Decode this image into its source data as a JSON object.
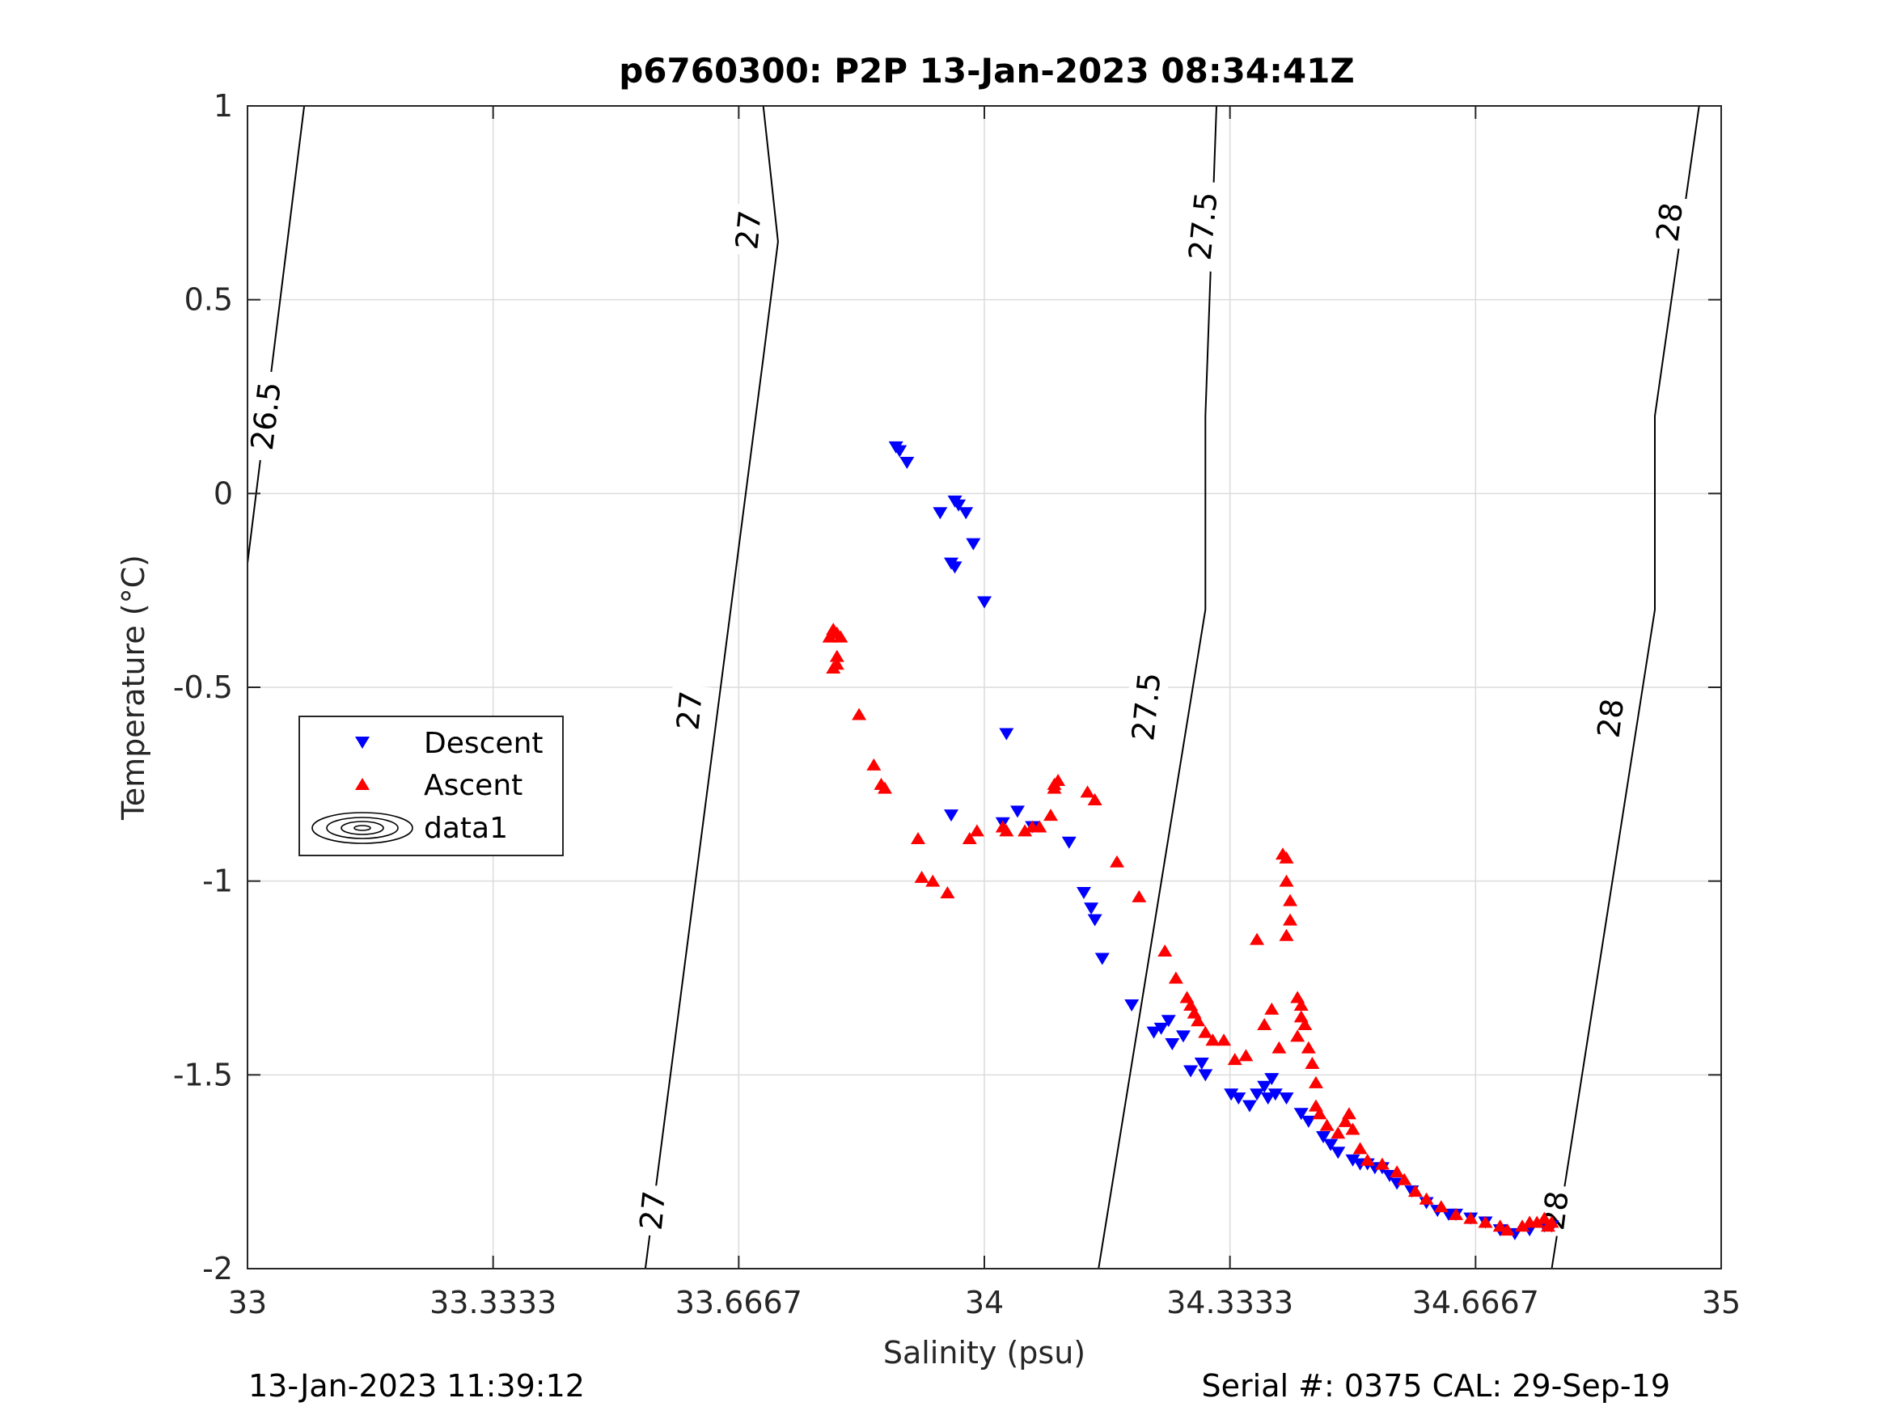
{
  "chart_data": {
    "type": "scatter",
    "title": "p6760300: P2P 13-Jan-2023 08:34:41Z",
    "xlabel": "Salinity (psu)",
    "ylabel": "Temperature (°C)",
    "xlim": [
      33,
      35
    ],
    "ylim": [
      -2,
      1
    ],
    "xticks": [
      "33",
      "33.3333",
      "33.6667",
      "34",
      "34.3333",
      "34.6667",
      "35"
    ],
    "yticks": [
      "1",
      "0.5",
      "0",
      "-0.5",
      "-1",
      "-1.5",
      "-2"
    ],
    "grid": true,
    "legend": {
      "placement": "left",
      "entries": [
        "Descent",
        "Ascent",
        "data1"
      ]
    },
    "footer_left": "13-Jan-2023 11:39:12",
    "footer_right": "Serial #: 0375  CAL: 29-Sep-19",
    "contours": [
      {
        "label": "26.5",
        "points": [
          [
            33.0,
            -0.18
          ],
          [
            33.077,
            1.0
          ]
        ],
        "labels_at": [
          [
            33.025,
            0.2
          ]
        ]
      },
      {
        "label": "27",
        "points": [
          [
            33.54,
            -2.0
          ],
          [
            33.7,
            0.35
          ],
          [
            33.72,
            0.65
          ],
          [
            33.7,
            1.0
          ]
        ],
        "labels_at": [
          [
            33.55,
            -1.85
          ],
          [
            33.6,
            -0.56
          ],
          [
            33.68,
            0.68
          ]
        ]
      },
      {
        "label": "27.5",
        "points": [
          [
            34.155,
            -2.0
          ],
          [
            34.3,
            -0.3
          ],
          [
            34.3,
            0.2
          ],
          [
            34.315,
            1.0
          ]
        ],
        "labels_at": [
          [
            34.22,
            -0.55
          ],
          [
            34.297,
            0.69
          ]
        ]
      },
      {
        "label": "28",
        "points": [
          [
            34.77,
            -2.0
          ],
          [
            34.91,
            -0.3
          ],
          [
            34.91,
            0.2
          ],
          [
            34.97,
            1.0
          ]
        ],
        "labels_at": [
          [
            34.775,
            -1.85
          ],
          [
            34.85,
            -0.58
          ],
          [
            34.93,
            0.7
          ]
        ]
      }
    ],
    "series": [
      {
        "name": "Descent",
        "color": "#0000ff",
        "marker": "triangle-down",
        "points": [
          [
            33.88,
            0.12
          ],
          [
            33.885,
            0.11
          ],
          [
            33.895,
            0.08
          ],
          [
            33.96,
            -0.02
          ],
          [
            33.965,
            -0.03
          ],
          [
            33.975,
            -0.05
          ],
          [
            33.94,
            -0.05
          ],
          [
            33.985,
            -0.13
          ],
          [
            33.955,
            -0.18
          ],
          [
            33.96,
            -0.19
          ],
          [
            34.0,
            -0.28
          ],
          [
            34.03,
            -0.62
          ],
          [
            33.955,
            -0.83
          ],
          [
            34.045,
            -0.82
          ],
          [
            34.025,
            -0.85
          ],
          [
            34.065,
            -0.86
          ],
          [
            34.115,
            -0.9
          ],
          [
            34.135,
            -1.03
          ],
          [
            34.145,
            -1.07
          ],
          [
            34.15,
            -1.1
          ],
          [
            34.16,
            -1.2
          ],
          [
            34.2,
            -1.32
          ],
          [
            34.23,
            -1.39
          ],
          [
            34.24,
            -1.38
          ],
          [
            34.25,
            -1.36
          ],
          [
            34.255,
            -1.42
          ],
          [
            34.27,
            -1.4
          ],
          [
            34.28,
            -1.49
          ],
          [
            34.295,
            -1.47
          ],
          [
            34.3,
            -1.5
          ],
          [
            34.335,
            -1.55
          ],
          [
            34.345,
            -1.56
          ],
          [
            34.36,
            -1.58
          ],
          [
            34.37,
            -1.55
          ],
          [
            34.38,
            -1.53
          ],
          [
            34.385,
            -1.56
          ],
          [
            34.39,
            -1.51
          ],
          [
            34.395,
            -1.55
          ],
          [
            34.41,
            -1.56
          ],
          [
            34.43,
            -1.6
          ],
          [
            34.44,
            -1.62
          ],
          [
            34.46,
            -1.66
          ],
          [
            34.47,
            -1.68
          ],
          [
            34.48,
            -1.7
          ],
          [
            34.5,
            -1.72
          ],
          [
            34.51,
            -1.73
          ],
          [
            34.52,
            -1.73
          ],
          [
            34.53,
            -1.74
          ],
          [
            34.54,
            -1.74
          ],
          [
            34.55,
            -1.76
          ],
          [
            34.56,
            -1.78
          ],
          [
            34.58,
            -1.8
          ],
          [
            34.6,
            -1.83
          ],
          [
            34.615,
            -1.85
          ],
          [
            34.63,
            -1.86
          ],
          [
            34.64,
            -1.86
          ],
          [
            34.66,
            -1.87
          ],
          [
            34.68,
            -1.88
          ],
          [
            34.7,
            -1.9
          ],
          [
            34.72,
            -1.91
          ],
          [
            34.74,
            -1.9
          ],
          [
            34.76,
            -1.89
          ],
          [
            34.77,
            -1.89
          ]
        ]
      },
      {
        "name": "Ascent",
        "color": "#ff0000",
        "marker": "triangle-up",
        "points": [
          [
            33.795,
            -0.35
          ],
          [
            33.8,
            -0.36
          ],
          [
            33.805,
            -0.37
          ],
          [
            33.79,
            -0.37
          ],
          [
            33.8,
            -0.42
          ],
          [
            33.8,
            -0.44
          ],
          [
            33.795,
            -0.45
          ],
          [
            33.83,
            -0.57
          ],
          [
            33.85,
            -0.7
          ],
          [
            33.86,
            -0.75
          ],
          [
            33.865,
            -0.76
          ],
          [
            33.91,
            -0.89
          ],
          [
            33.915,
            -0.99
          ],
          [
            33.93,
            -1.0
          ],
          [
            33.95,
            -1.03
          ],
          [
            33.98,
            -0.89
          ],
          [
            33.99,
            -0.87
          ],
          [
            34.025,
            -0.86
          ],
          [
            34.03,
            -0.87
          ],
          [
            34.055,
            -0.87
          ],
          [
            34.065,
            -0.86
          ],
          [
            34.075,
            -0.86
          ],
          [
            34.09,
            -0.83
          ],
          [
            34.095,
            -0.75
          ],
          [
            34.1,
            -0.74
          ],
          [
            34.095,
            -0.76
          ],
          [
            34.14,
            -0.77
          ],
          [
            34.15,
            -0.79
          ],
          [
            34.18,
            -0.95
          ],
          [
            34.21,
            -1.04
          ],
          [
            34.245,
            -1.18
          ],
          [
            34.26,
            -1.25
          ],
          [
            34.275,
            -1.3
          ],
          [
            34.28,
            -1.32
          ],
          [
            34.285,
            -1.34
          ],
          [
            34.29,
            -1.36
          ],
          [
            34.3,
            -1.39
          ],
          [
            34.31,
            -1.41
          ],
          [
            34.325,
            -1.41
          ],
          [
            34.34,
            -1.46
          ],
          [
            34.355,
            -1.45
          ],
          [
            34.37,
            -1.15
          ],
          [
            34.38,
            -1.37
          ],
          [
            34.39,
            -1.33
          ],
          [
            34.4,
            -1.43
          ],
          [
            34.405,
            -0.93
          ],
          [
            34.41,
            -0.94
          ],
          [
            34.41,
            -1.0
          ],
          [
            34.415,
            -1.05
          ],
          [
            34.415,
            -1.1
          ],
          [
            34.41,
            -1.14
          ],
          [
            34.425,
            -1.3
          ],
          [
            34.43,
            -1.32
          ],
          [
            34.43,
            -1.35
          ],
          [
            34.435,
            -1.37
          ],
          [
            34.425,
            -1.4
          ],
          [
            34.44,
            -1.43
          ],
          [
            34.445,
            -1.47
          ],
          [
            34.45,
            -1.52
          ],
          [
            34.45,
            -1.58
          ],
          [
            34.455,
            -1.6
          ],
          [
            34.465,
            -1.63
          ],
          [
            34.48,
            -1.65
          ],
          [
            34.49,
            -1.62
          ],
          [
            34.495,
            -1.6
          ],
          [
            34.5,
            -1.64
          ],
          [
            34.51,
            -1.69
          ],
          [
            34.52,
            -1.72
          ],
          [
            34.54,
            -1.73
          ],
          [
            34.56,
            -1.75
          ],
          [
            34.57,
            -1.77
          ],
          [
            34.585,
            -1.8
          ],
          [
            34.6,
            -1.82
          ],
          [
            34.62,
            -1.84
          ],
          [
            34.64,
            -1.86
          ],
          [
            34.66,
            -1.87
          ],
          [
            34.68,
            -1.88
          ],
          [
            34.7,
            -1.89
          ],
          [
            34.71,
            -1.9
          ],
          [
            34.73,
            -1.89
          ],
          [
            34.74,
            -1.88
          ],
          [
            34.75,
            -1.88
          ],
          [
            34.76,
            -1.87
          ],
          [
            34.77,
            -1.88
          ],
          [
            34.765,
            -1.89
          ]
        ]
      }
    ]
  }
}
